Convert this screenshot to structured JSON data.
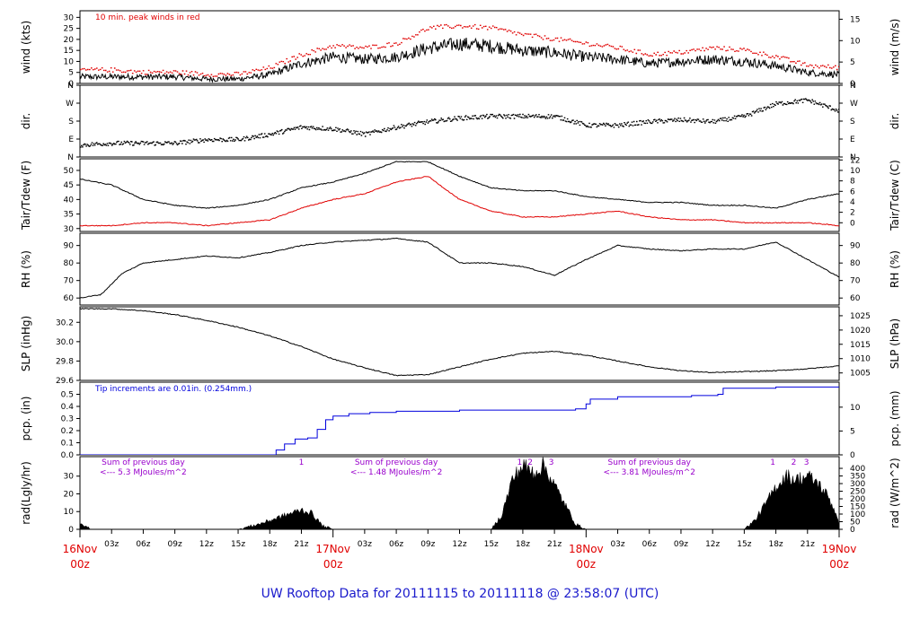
{
  "title": "UW Rooftop Data for 20111115  to  20111118 @ 23:58:07  (UTC)",
  "colors": {
    "red": "#e00000",
    "blue": "#0000dd",
    "purple": "#9900cc",
    "black": "#000000"
  },
  "chart_data": {
    "type": "line",
    "x_hour_ticks": [
      "03z",
      "06z",
      "09z",
      "12z",
      "15z",
      "18z",
      "21z"
    ],
    "day_labels": [
      {
        "date": "16Nov",
        "time": "00z"
      },
      {
        "date": "17Nov",
        "time": "00z"
      },
      {
        "date": "18Nov",
        "time": "00z"
      },
      {
        "date": "19Nov",
        "time": "00z"
      }
    ],
    "panels": [
      {
        "id": "wind",
        "ylabel_left": "wind (kts)",
        "ylabel_right": "wind (m/s)",
        "ylim": [
          0,
          33
        ],
        "left_ticks": [
          0,
          5,
          10,
          15,
          20,
          25,
          30
        ],
        "right_ticks": [
          {
            "v": 0,
            "label": "0"
          },
          {
            "v": 9.72,
            "label": "5"
          },
          {
            "v": 19.44,
            "label": "10"
          },
          {
            "v": 29.16,
            "label": "15"
          }
        ],
        "annotation": "10 min. peak winds in red",
        "series": [
          {
            "key": "wind",
            "color": "black",
            "style": "noisy",
            "noise": 2.5,
            "x": [
              0,
              3,
              6,
              9,
              12,
              15,
              18,
              21,
              24,
              27,
              30,
              33,
              36,
              39,
              42,
              45,
              48,
              51,
              54,
              57,
              60,
              63,
              66,
              69,
              72
            ],
            "y": [
              3,
              3,
              3,
              3,
              2,
              2,
              4,
              9,
              12,
              11,
              12,
              16,
              18,
              17,
              15,
              14,
              12,
              11,
              9,
              10,
              11,
              10,
              8,
              5,
              4
            ]
          },
          {
            "key": "gust",
            "color": "red",
            "style": "dots",
            "x": [
              0,
              3,
              6,
              9,
              12,
              15,
              18,
              21,
              24,
              27,
              30,
              33,
              36,
              39,
              42,
              45,
              48,
              51,
              54,
              57,
              60,
              63,
              66,
              69,
              72
            ],
            "y": [
              6,
              6,
              5,
              5,
              4,
              4,
              7,
              13,
              17,
              16,
              18,
              25,
              26,
              25,
              22,
              20,
              18,
              16,
              13,
              14,
              16,
              15,
              12,
              8,
              7
            ]
          }
        ]
      },
      {
        "id": "dir",
        "ylabel_left": "dir.",
        "ylabel_right": "dir.",
        "ylim": [
          0,
          4
        ],
        "left_ticks": [
          {
            "v": 0,
            "label": "N"
          },
          {
            "v": 1,
            "label": "E"
          },
          {
            "v": 2,
            "label": "S"
          },
          {
            "v": 3,
            "label": "W"
          },
          {
            "v": 4,
            "label": "N"
          }
        ],
        "right_ticks": [
          {
            "v": 0,
            "label": "N"
          },
          {
            "v": 1,
            "label": "E"
          },
          {
            "v": 2,
            "label": "S"
          },
          {
            "v": 3,
            "label": "W"
          },
          {
            "v": 4,
            "label": "N"
          }
        ],
        "series": [
          {
            "key": "dir",
            "color": "black",
            "style": "dots",
            "scatter": 0.12,
            "x": [
              0,
              3,
              6,
              9,
              12,
              15,
              18,
              21,
              24,
              27,
              30,
              33,
              36,
              39,
              42,
              45,
              48,
              51,
              54,
              57,
              60,
              63,
              66,
              69,
              72
            ],
            "y": [
              0.7,
              0.8,
              0.8,
              0.8,
              1.0,
              1.0,
              1.3,
              1.7,
              1.6,
              1.3,
              1.7,
              2.0,
              2.2,
              2.3,
              2.3,
              2.3,
              1.8,
              1.8,
              2.0,
              2.1,
              2.0,
              2.3,
              3.0,
              3.2,
              2.6
            ]
          }
        ]
      },
      {
        "id": "temp",
        "ylabel_left": "Tair/Tdew (F)",
        "ylabel_right": "Tair/Tdew (C)",
        "ylim": [
          29,
          54
        ],
        "left_ticks": [
          30,
          35,
          40,
          45,
          50
        ],
        "right_ticks": [
          {
            "v": 32,
            "label": "0"
          },
          {
            "v": 35.6,
            "label": "2"
          },
          {
            "v": 39.2,
            "label": "4"
          },
          {
            "v": 42.8,
            "label": "6"
          },
          {
            "v": 46.4,
            "label": "8"
          },
          {
            "v": 50,
            "label": "10"
          },
          {
            "v": 53.6,
            "label": "12"
          }
        ],
        "series": [
          {
            "key": "tair",
            "color": "black",
            "style": "line",
            "x": [
              0,
              3,
              6,
              9,
              12,
              15,
              18,
              21,
              24,
              27,
              30,
              33,
              36,
              39,
              42,
              45,
              48,
              51,
              54,
              57,
              60,
              63,
              66,
              69,
              72
            ],
            "y": [
              47,
              45,
              40,
              38,
              37,
              38,
              40,
              44,
              46,
              49,
              53,
              53,
              48,
              44,
              43,
              43,
              41,
              40,
              39,
              39,
              38,
              38,
              37,
              40,
              42
            ]
          },
          {
            "key": "tdew",
            "color": "red",
            "style": "line",
            "x": [
              0,
              3,
              6,
              9,
              12,
              15,
              18,
              21,
              24,
              27,
              30,
              33,
              36,
              39,
              42,
              45,
              48,
              51,
              54,
              57,
              60,
              63,
              66,
              69,
              72
            ],
            "y": [
              31,
              31,
              32,
              32,
              31,
              32,
              33,
              37,
              40,
              42,
              46,
              48,
              40,
              36,
              34,
              34,
              35,
              36,
              34,
              33,
              33,
              32,
              32,
              32,
              31
            ]
          }
        ]
      },
      {
        "id": "rh",
        "ylabel_left": "RH (%)",
        "ylabel_right": "RH (%)",
        "ylim": [
          56,
          97
        ],
        "left_ticks": [
          60,
          70,
          80,
          90
        ],
        "right_ticks": [
          {
            "v": 60,
            "label": "60"
          },
          {
            "v": 70,
            "label": "70"
          },
          {
            "v": 80,
            "label": "80"
          },
          {
            "v": 90,
            "label": "90"
          }
        ],
        "series": [
          {
            "key": "rh",
            "color": "black",
            "style": "line",
            "x": [
              0,
              2,
              4,
              6,
              9,
              12,
              15,
              18,
              21,
              24,
              27,
              30,
              33,
              36,
              39,
              42,
              45,
              48,
              51,
              54,
              57,
              60,
              63,
              66,
              69,
              72
            ],
            "y": [
              60,
              62,
              74,
              80,
              82,
              84,
              83,
              86,
              90,
              92,
              93,
              94,
              92,
              80,
              80,
              78,
              73,
              82,
              90,
              88,
              87,
              88,
              88,
              92,
              82,
              72
            ]
          }
        ]
      },
      {
        "id": "slp",
        "ylabel_left": "SLP (inHg)",
        "ylabel_right": "SLP (hPa)",
        "ylim": [
          29.6,
          30.36
        ],
        "left_ticks": [
          {
            "v": 29.6,
            "label": "29.6"
          },
          {
            "v": 29.8,
            "label": "29.8"
          },
          {
            "v": 30.0,
            "label": "30.0"
          },
          {
            "v": 30.2,
            "label": "30.2"
          }
        ],
        "right_ticks": [
          {
            "v": 29.677,
            "label": "1005"
          },
          {
            "v": 29.825,
            "label": "1010"
          },
          {
            "v": 29.973,
            "label": "1015"
          },
          {
            "v": 30.12,
            "label": "1020"
          },
          {
            "v": 30.268,
            "label": "1025"
          }
        ],
        "series": [
          {
            "key": "slp",
            "color": "black",
            "style": "line",
            "x": [
              0,
              3,
              6,
              9,
              12,
              15,
              18,
              21,
              24,
              27,
              30,
              33,
              36,
              39,
              42,
              45,
              48,
              51,
              54,
              57,
              60,
              63,
              66,
              69,
              72
            ],
            "y": [
              30.34,
              30.34,
              30.32,
              30.28,
              30.22,
              30.15,
              30.06,
              29.95,
              29.82,
              29.73,
              29.65,
              29.66,
              29.74,
              29.82,
              29.88,
              29.9,
              29.86,
              29.8,
              29.74,
              29.7,
              29.68,
              29.69,
              29.7,
              29.72,
              29.75
            ]
          }
        ]
      },
      {
        "id": "pcp",
        "ylabel_left": "pcp. (in)",
        "ylabel_right": "pcp. (mm)",
        "ylim": [
          0,
          0.6
        ],
        "left_ticks": [
          {
            "v": 0,
            "label": "0.0"
          },
          {
            "v": 0.1,
            "label": "0.1"
          },
          {
            "v": 0.2,
            "label": "0.2"
          },
          {
            "v": 0.3,
            "label": "0.3"
          },
          {
            "v": 0.4,
            "label": "0.4"
          },
          {
            "v": 0.5,
            "label": "0.5"
          }
        ],
        "right_ticks": [
          {
            "v": 0,
            "label": "0"
          },
          {
            "v": 0.19685,
            "label": "5"
          },
          {
            "v": 0.3937,
            "label": "10"
          }
        ],
        "annotation": "Tip increments are 0.01in. (0.254mm.)",
        "series": [
          {
            "key": "pcp",
            "color": "blue",
            "style": "step",
            "x": [
              0,
              18,
              18.6,
              19.4,
              20.4,
              21.6,
              22.5,
              23.3,
              24.0,
              25.5,
              27.5,
              30,
              36,
              47,
              48,
              48.4,
              51,
              58,
              60.5,
              61,
              66,
              72
            ],
            "y": [
              0,
              0,
              0.04,
              0.09,
              0.13,
              0.14,
              0.21,
              0.29,
              0.32,
              0.34,
              0.35,
              0.36,
              0.37,
              0.38,
              0.42,
              0.46,
              0.48,
              0.49,
              0.5,
              0.55,
              0.56,
              0.56
            ]
          }
        ]
      },
      {
        "id": "rad",
        "ylabel_left": "rad(Lgly/hr)",
        "ylabel_right": "rad (W/m^2)",
        "ylim": [
          0,
          41
        ],
        "left_ticks": [
          0,
          10,
          20,
          30
        ],
        "right_ticks": [
          {
            "v": 0,
            "label": "0"
          },
          {
            "v": 4.3,
            "label": "50"
          },
          {
            "v": 8.6,
            "label": "100"
          },
          {
            "v": 12.9,
            "label": "150"
          },
          {
            "v": 17.2,
            "label": "200"
          },
          {
            "v": 21.5,
            "label": "250"
          },
          {
            "v": 25.8,
            "label": "300"
          },
          {
            "v": 30.1,
            "label": "350"
          },
          {
            "v": 34.4,
            "label": "400"
          }
        ],
        "notes": [
          {
            "day": 0,
            "line1": "Sum of previous day",
            "line2": "<--- 5.3 MJoules/m^2"
          },
          {
            "day": 1,
            "line1": "Sum of previous day",
            "line2": "<--- 1.48 MJoules/m^2"
          },
          {
            "day": 2,
            "line1": "Sum of previous day",
            "line2": "<--- 3.81 MJoules/m^2"
          }
        ],
        "day_markers": [
          {
            "x": 21,
            "label": "1"
          },
          {
            "x": 41.7,
            "label": "1"
          },
          {
            "x": 42.7,
            "label": "2"
          },
          {
            "x": 44.7,
            "label": "3"
          },
          {
            "x": 65.7,
            "label": "1"
          },
          {
            "x": 67.7,
            "label": "2"
          },
          {
            "x": 68.9,
            "label": "3"
          }
        ],
        "series": [
          {
            "key": "rad",
            "color": "black",
            "style": "fill",
            "noise": 2,
            "x": [
              0,
              0.5,
              1,
              15,
              17,
              19,
              21,
              22,
              23,
              24,
              39,
              40,
              41,
              42,
              43,
              44,
              45,
              46,
              47,
              48,
              63,
              64,
              65,
              66,
              67,
              68,
              69,
              70,
              71,
              72
            ],
            "y": [
              4,
              2,
              0,
              0,
              3,
              7,
              11,
              9,
              2,
              0,
              0,
              8,
              28,
              36,
              32,
              36,
              25,
              14,
              3,
              0,
              0,
              5,
              14,
              24,
              30,
              28,
              30,
              26,
              18,
              5
            ]
          }
        ]
      }
    ]
  }
}
